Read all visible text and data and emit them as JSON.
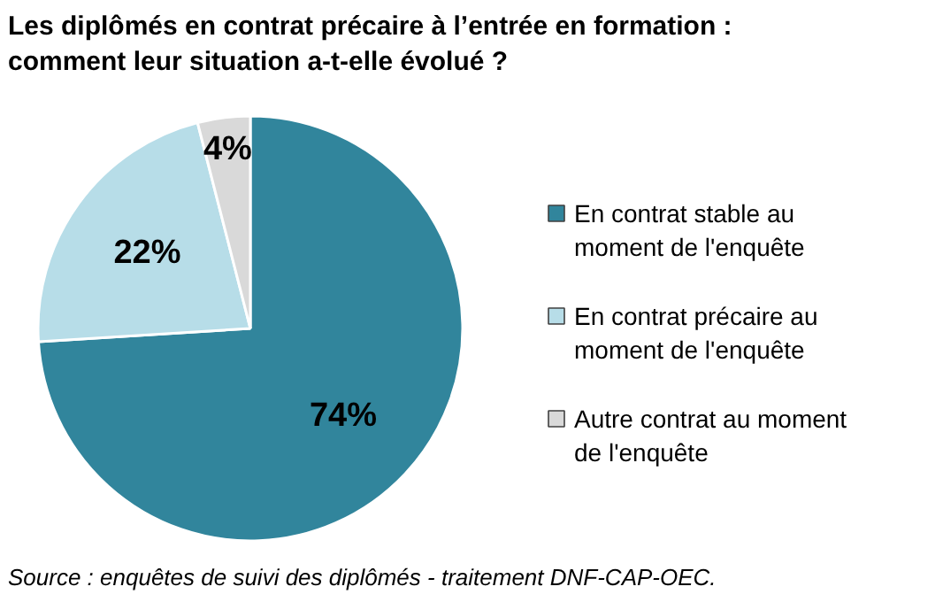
{
  "chart_data": {
    "type": "pie",
    "title": "Les diplômés en contrat précaire à l’entrée en formation : comment leur situation a-t-elle évolué ?",
    "categories": [
      "En contrat stable au moment de l'enquête",
      "En contrat précaire au moment de l'enquête",
      "Autre contrat au moment de l'enquête"
    ],
    "values": [
      74,
      22,
      4
    ],
    "colors": [
      "#31859c",
      "#b7dde8",
      "#d9d9d9"
    ],
    "value_labels": [
      "74%",
      "22%",
      "4%"
    ],
    "legend": "right",
    "annotations": [
      "Source : enquêtes de suivi des diplômés - traitement DNF-CAP-OEC."
    ]
  }
}
